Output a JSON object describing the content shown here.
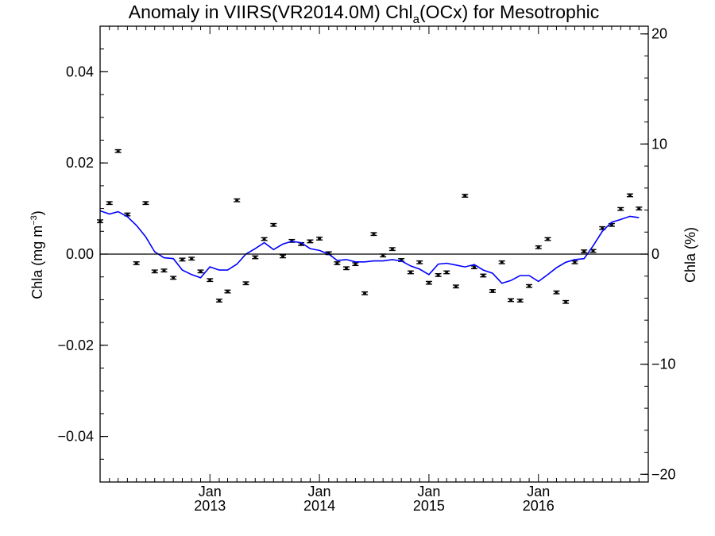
{
  "chart_data": {
    "type": "line",
    "title": {
      "prefix": "Anomaly in VIIRS(VR2014.0M) Chl",
      "subscript": "a",
      "suffix": "(OCx) for Mesotrophic"
    },
    "ylabel": {
      "text": "Chla (mg m",
      "superscript": "−3",
      "close": ")"
    },
    "y2label": "Chla (%)",
    "ylim": [
      -0.05,
      0.05
    ],
    "y2lim": [
      -20.7,
      20.7
    ],
    "xlim": [
      "2012-01-01",
      "2017-01-01"
    ],
    "yticks": [
      0.04,
      0.02,
      0.0,
      -0.02,
      -0.04
    ],
    "yticklabels": [
      "0.04",
      "0.02",
      "0.00",
      "−0.02",
      "−0.04"
    ],
    "y2ticks": [
      20,
      10,
      0,
      -10,
      -20
    ],
    "y2ticklabels": [
      "20",
      "10",
      "0",
      "−10",
      "−20"
    ],
    "xticks": [
      {
        "date": "2013-01-01",
        "month": "Jan",
        "year": "2013"
      },
      {
        "date": "2014-01-01",
        "month": "Jan",
        "year": "2014"
      },
      {
        "date": "2015-01-01",
        "month": "Jan",
        "year": "2015"
      },
      {
        "date": "2016-01-01",
        "month": "Jan",
        "year": "2016"
      }
    ],
    "zero_line": true,
    "colors": {
      "points": "#000000",
      "line": "#0000ff",
      "axes": "#000000"
    },
    "series": [
      {
        "style": "errorbar-points",
        "axis": "left",
        "error": 0.0003,
        "points": [
          [
            "2012-01-01",
            0.0072
          ],
          [
            "2012-02-01",
            0.0112
          ],
          [
            "2012-03-01",
            0.0226
          ],
          [
            "2012-04-01",
            0.0087
          ],
          [
            "2012-05-01",
            -0.002
          ],
          [
            "2012-06-01",
            0.0112
          ],
          [
            "2012-07-01",
            -0.0038
          ],
          [
            "2012-08-01",
            -0.0036
          ],
          [
            "2012-09-01",
            -0.0052
          ],
          [
            "2012-10-01",
            -0.0012
          ],
          [
            "2012-11-01",
            -0.001
          ],
          [
            "2012-12-01",
            -0.0038
          ],
          [
            "2013-01-01",
            -0.0057
          ],
          [
            "2013-02-01",
            -0.0102
          ],
          [
            "2013-03-01",
            -0.0082
          ],
          [
            "2013-04-01",
            0.0118
          ],
          [
            "2013-05-01",
            -0.0064
          ],
          [
            "2013-06-01",
            -0.0007
          ],
          [
            "2013-07-01",
            0.0033
          ],
          [
            "2013-08-01",
            0.0064
          ],
          [
            "2013-09-01",
            -0.0005
          ],
          [
            "2013-10-01",
            0.0029
          ],
          [
            "2013-11-01",
            0.0022
          ],
          [
            "2013-12-01",
            0.0028
          ],
          [
            "2014-01-01",
            0.0034
          ],
          [
            "2014-02-01",
            0.0002
          ],
          [
            "2014-03-01",
            -0.002
          ],
          [
            "2014-04-01",
            -0.0031
          ],
          [
            "2014-05-01",
            -0.0022
          ],
          [
            "2014-06-01",
            -0.0086
          ],
          [
            "2014-07-01",
            0.0044
          ],
          [
            "2014-08-01",
            -0.0003
          ],
          [
            "2014-09-01",
            0.0011
          ],
          [
            "2014-10-01",
            -0.0013
          ],
          [
            "2014-11-01",
            -0.004
          ],
          [
            "2014-12-01",
            -0.0018
          ],
          [
            "2015-01-01",
            -0.0063
          ],
          [
            "2015-02-01",
            -0.0046
          ],
          [
            "2015-03-01",
            -0.004
          ],
          [
            "2015-04-01",
            -0.0071
          ],
          [
            "2015-05-01",
            0.0128
          ],
          [
            "2015-06-01",
            -0.0029
          ],
          [
            "2015-07-01",
            -0.0047
          ],
          [
            "2015-08-01",
            -0.0081
          ],
          [
            "2015-09-01",
            -0.0018
          ],
          [
            "2015-10-01",
            -0.0101
          ],
          [
            "2015-11-01",
            -0.0102
          ],
          [
            "2015-12-01",
            -0.007
          ],
          [
            "2016-01-01",
            0.0015
          ],
          [
            "2016-02-01",
            0.0033
          ],
          [
            "2016-03-01",
            -0.0084
          ],
          [
            "2016-04-01",
            -0.0105
          ],
          [
            "2016-05-01",
            -0.0018
          ],
          [
            "2016-06-01",
            0.0006
          ],
          [
            "2016-07-01",
            0.0007
          ],
          [
            "2016-08-01",
            0.0057
          ],
          [
            "2016-09-01",
            0.0064
          ],
          [
            "2016-10-01",
            0.0099
          ],
          [
            "2016-11-01",
            0.0129
          ],
          [
            "2016-12-01",
            0.01
          ]
        ]
      },
      {
        "style": "line",
        "axis": "left",
        "points": [
          [
            "2012-01-01",
            0.0095
          ],
          [
            "2012-02-01",
            0.0088
          ],
          [
            "2012-03-01",
            0.0093
          ],
          [
            "2012-04-01",
            0.0082
          ],
          [
            "2012-05-01",
            0.0063
          ],
          [
            "2012-06-01",
            0.0038
          ],
          [
            "2012-07-01",
            0.0005
          ],
          [
            "2012-08-01",
            -0.0008
          ],
          [
            "2012-09-01",
            -0.001
          ],
          [
            "2012-10-01",
            -0.0035
          ],
          [
            "2012-11-01",
            -0.0045
          ],
          [
            "2012-12-01",
            -0.0052
          ],
          [
            "2013-01-01",
            -0.0028
          ],
          [
            "2013-02-01",
            -0.0035
          ],
          [
            "2013-03-01",
            -0.0035
          ],
          [
            "2013-04-01",
            -0.0022
          ],
          [
            "2013-05-01",
            0.0
          ],
          [
            "2013-06-01",
            0.0012
          ],
          [
            "2013-07-01",
            0.0025
          ],
          [
            "2013-08-01",
            0.001
          ],
          [
            "2013-09-01",
            0.0022
          ],
          [
            "2013-10-01",
            0.0028
          ],
          [
            "2013-11-01",
            0.0025
          ],
          [
            "2013-12-01",
            0.0012
          ],
          [
            "2014-01-01",
            0.0008
          ],
          [
            "2014-02-01",
            0.0
          ],
          [
            "2014-03-01",
            -0.0014
          ],
          [
            "2014-04-01",
            -0.0012
          ],
          [
            "2014-05-01",
            -0.0017
          ],
          [
            "2014-06-01",
            -0.0017
          ],
          [
            "2014-07-01",
            -0.0015
          ],
          [
            "2014-08-01",
            -0.0015
          ],
          [
            "2014-09-01",
            -0.0012
          ],
          [
            "2014-10-01",
            -0.0015
          ],
          [
            "2014-11-01",
            -0.0026
          ],
          [
            "2014-12-01",
            -0.0033
          ],
          [
            "2015-01-01",
            -0.0045
          ],
          [
            "2015-02-01",
            -0.0022
          ],
          [
            "2015-03-01",
            -0.002
          ],
          [
            "2015-04-01",
            -0.0024
          ],
          [
            "2015-05-01",
            -0.0028
          ],
          [
            "2015-06-01",
            -0.0023
          ],
          [
            "2015-07-01",
            -0.0035
          ],
          [
            "2015-08-01",
            -0.0042
          ],
          [
            "2015-09-01",
            -0.0064
          ],
          [
            "2015-10-01",
            -0.0058
          ],
          [
            "2015-11-01",
            -0.0047
          ],
          [
            "2015-12-01",
            -0.0047
          ],
          [
            "2016-01-01",
            -0.006
          ],
          [
            "2016-02-01",
            -0.0045
          ],
          [
            "2016-03-01",
            -0.003
          ],
          [
            "2016-04-01",
            -0.0018
          ],
          [
            "2016-05-01",
            -0.0012
          ],
          [
            "2016-06-01",
            -0.001
          ],
          [
            "2016-07-01",
            0.0018
          ],
          [
            "2016-08-01",
            0.005
          ],
          [
            "2016-09-01",
            0.007
          ],
          [
            "2016-10-01",
            0.0076
          ],
          [
            "2016-11-01",
            0.0083
          ],
          [
            "2016-12-01",
            0.008
          ]
        ]
      }
    ]
  }
}
